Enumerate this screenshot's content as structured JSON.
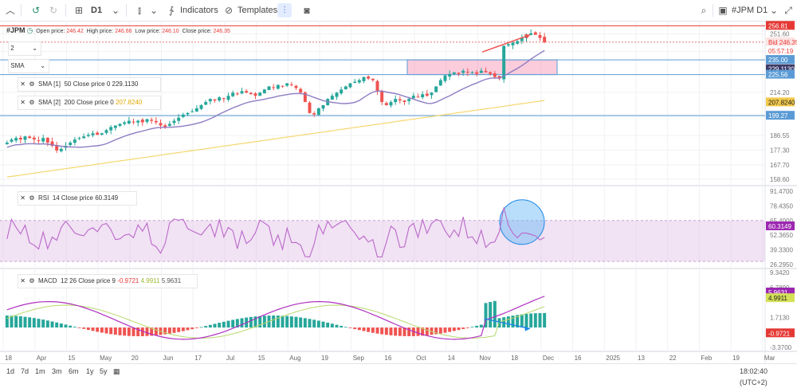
{
  "toolbar": {
    "timeframe": "D1",
    "indicators_label": "Indicators",
    "templates_label": "Templates",
    "symbol_label": "#JPM D1"
  },
  "symbol": {
    "name": "#JPM",
    "open_label": "Open price:",
    "open": "246.42",
    "high_label": "High price:",
    "high": "246.66",
    "low_label": "Low price:",
    "low": "246.10",
    "close_label": "Close price:",
    "close": "246.35"
  },
  "controls": {
    "selector_value": "2",
    "sma_select": "SMA"
  },
  "indicators": {
    "sma1": {
      "name": "SMA [1]",
      "params": "50 Close price 0",
      "value": "229.1130"
    },
    "sma2": {
      "name": "SMA [2]",
      "params": "200 Close price 0",
      "value": "207.8240"
    },
    "rsi": {
      "name": "RSI",
      "params": "14 Close price",
      "value": "60.3149"
    },
    "macd": {
      "name": "MACD",
      "params": "12 26 Close price 9",
      "v1": "-0.9721",
      "v2": "4.9911",
      "v3": "5.9631"
    }
  },
  "price_axis": {
    "ticks": [
      "251.60",
      "240.25",
      "214.20",
      "199.70",
      "186.55",
      "177.30",
      "167.70",
      "158.60"
    ],
    "badges": {
      "top": "256.81",
      "bid": "Bid 246.35",
      "timer": "05:57:19",
      "level1": "235.00",
      "sma50": "229.1130",
      "level2": "225.56",
      "sma200": "207.8240",
      "level3": "199.27"
    }
  },
  "rsi_axis": {
    "ticks": [
      "91.4700",
      "78.4350",
      "65.4000",
      "52.3650",
      "39.3300",
      "26.2950"
    ],
    "badge": "60.3149"
  },
  "macd_axis": {
    "ticks": [
      "9.3420",
      "6.7890",
      "1.7130",
      "-3.3700"
    ],
    "badges": [
      "5.9631",
      "4.9911",
      "-0.9721"
    ]
  },
  "time_axis": [
    "18",
    "Apr",
    "15",
    "May",
    "20",
    "Jun",
    "17",
    "Jul",
    "15",
    "Aug",
    "19",
    "Sep",
    "16",
    "Oct",
    "14",
    "Nov",
    "18",
    "Dec",
    "16",
    "2025",
    "13",
    "22",
    "Feb",
    "19",
    "Mar"
  ],
  "bottom": {
    "ranges": [
      "1d",
      "7d",
      "1m",
      "3m",
      "6m",
      "1y",
      "5y"
    ],
    "clock": "18:02:40 (UTC+2)"
  },
  "colors": {
    "bull": "#26a69a",
    "bear": "#ef5350",
    "sma50": "#8e7cc3",
    "sma200": "#f5d76e",
    "rsi": "#ba68c8",
    "macd_line": "#b030c0",
    "signal_line": "#b7d96b",
    "level": "#5b9bd5",
    "top_line": "#e53935"
  },
  "chart_data": {
    "type": "candlestick",
    "symbol": "#JPM",
    "timeframe": "D1",
    "close_series": [
      182,
      184,
      185,
      184,
      186,
      185,
      184,
      183,
      185,
      182,
      180,
      177,
      178,
      180,
      182,
      184,
      185,
      186,
      187,
      188,
      187,
      188,
      190,
      192,
      193,
      194,
      195,
      196,
      195,
      196,
      195,
      197,
      196,
      195,
      193,
      192,
      194,
      196,
      198,
      200,
      201,
      202,
      204,
      206,
      208,
      210,
      209,
      211,
      210,
      212,
      214,
      213,
      215,
      214,
      213,
      212,
      214,
      216,
      218,
      217,
      219,
      218,
      220,
      219,
      217,
      214,
      208,
      201,
      200,
      204,
      206,
      210,
      212,
      214,
      216,
      218,
      220,
      221,
      222,
      224,
      223,
      222,
      215,
      208,
      206,
      208,
      210,
      209,
      208,
      210,
      212,
      211,
      213,
      212,
      214,
      218,
      222,
      225,
      226,
      227,
      226,
      228,
      227,
      227,
      226,
      228,
      227,
      226,
      224,
      223,
      244,
      245,
      246,
      247,
      249,
      251,
      252,
      251,
      249,
      246.35
    ],
    "sma50": "229.1130",
    "sma200": "207.8240",
    "price_range": [
      155,
      258
    ],
    "levels": [
      235.0,
      225.56,
      199.27,
      256.81
    ],
    "rsi_range": [
      26.295,
      91.47
    ],
    "rsi_last": 60.3149,
    "macd_last": {
      "macd": 5.9631,
      "signal": 4.9911,
      "histogram": -0.9721
    }
  }
}
